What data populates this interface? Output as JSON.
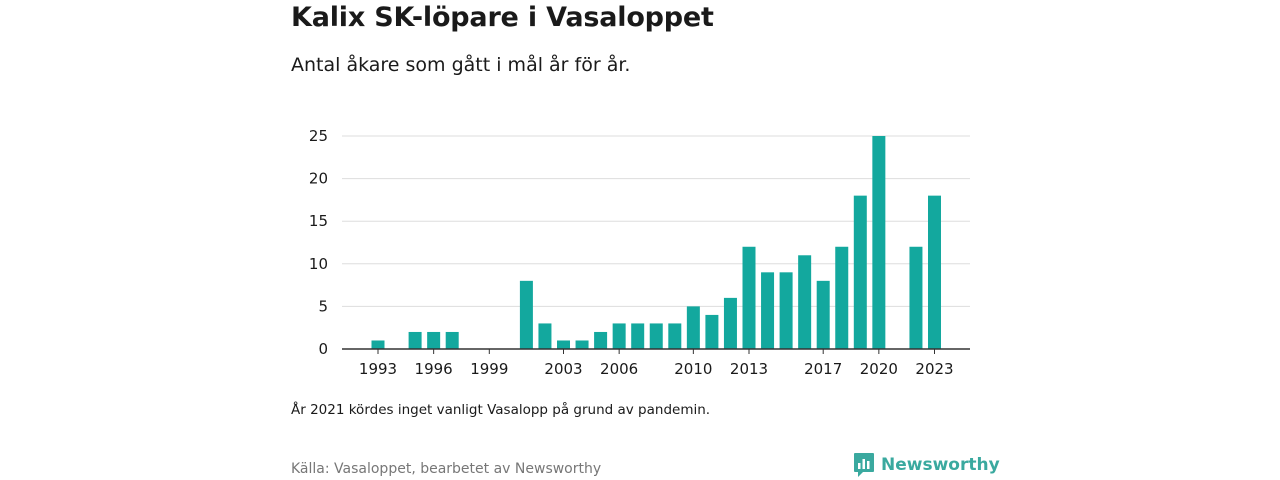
{
  "header": {
    "title": "Kalix SK-löpare i Vasaloppet",
    "subtitle": "Antal åkare som gått i mål år för år."
  },
  "footer": {
    "note": "År 2021 kördes inget vanligt Vasalopp på grund av pandemin.",
    "source": "Källa: Vasaloppet, bearbetet av Newsworthy",
    "brand": "Newsworthy",
    "brand_icon": "newsworthy-logo-icon"
  },
  "colors": {
    "bar": "#13a89e",
    "brand": "#3aa99f",
    "grid": "#dddddd",
    "axis": "#333333"
  },
  "chart_data": {
    "type": "bar",
    "title": "",
    "xlabel": "",
    "ylabel": "",
    "x": [
      1993,
      1994,
      1995,
      1996,
      1997,
      1998,
      1999,
      2000,
      2001,
      2002,
      2003,
      2004,
      2005,
      2006,
      2007,
      2008,
      2009,
      2010,
      2011,
      2012,
      2013,
      2014,
      2015,
      2016,
      2017,
      2018,
      2019,
      2020,
      2021,
      2022,
      2023
    ],
    "values": [
      1,
      0,
      2,
      2,
      2,
      0,
      0,
      0,
      8,
      3,
      1,
      1,
      2,
      3,
      3,
      3,
      3,
      5,
      4,
      6,
      12,
      9,
      9,
      11,
      8,
      12,
      18,
      25,
      null,
      12,
      18
    ],
    "x_ticks": [
      1993,
      1996,
      1999,
      2003,
      2006,
      2010,
      2013,
      2017,
      2020,
      2023
    ],
    "y_ticks": [
      0,
      5,
      10,
      15,
      20,
      25
    ],
    "ylim": [
      0,
      25
    ],
    "grid": true,
    "legend": "none"
  }
}
